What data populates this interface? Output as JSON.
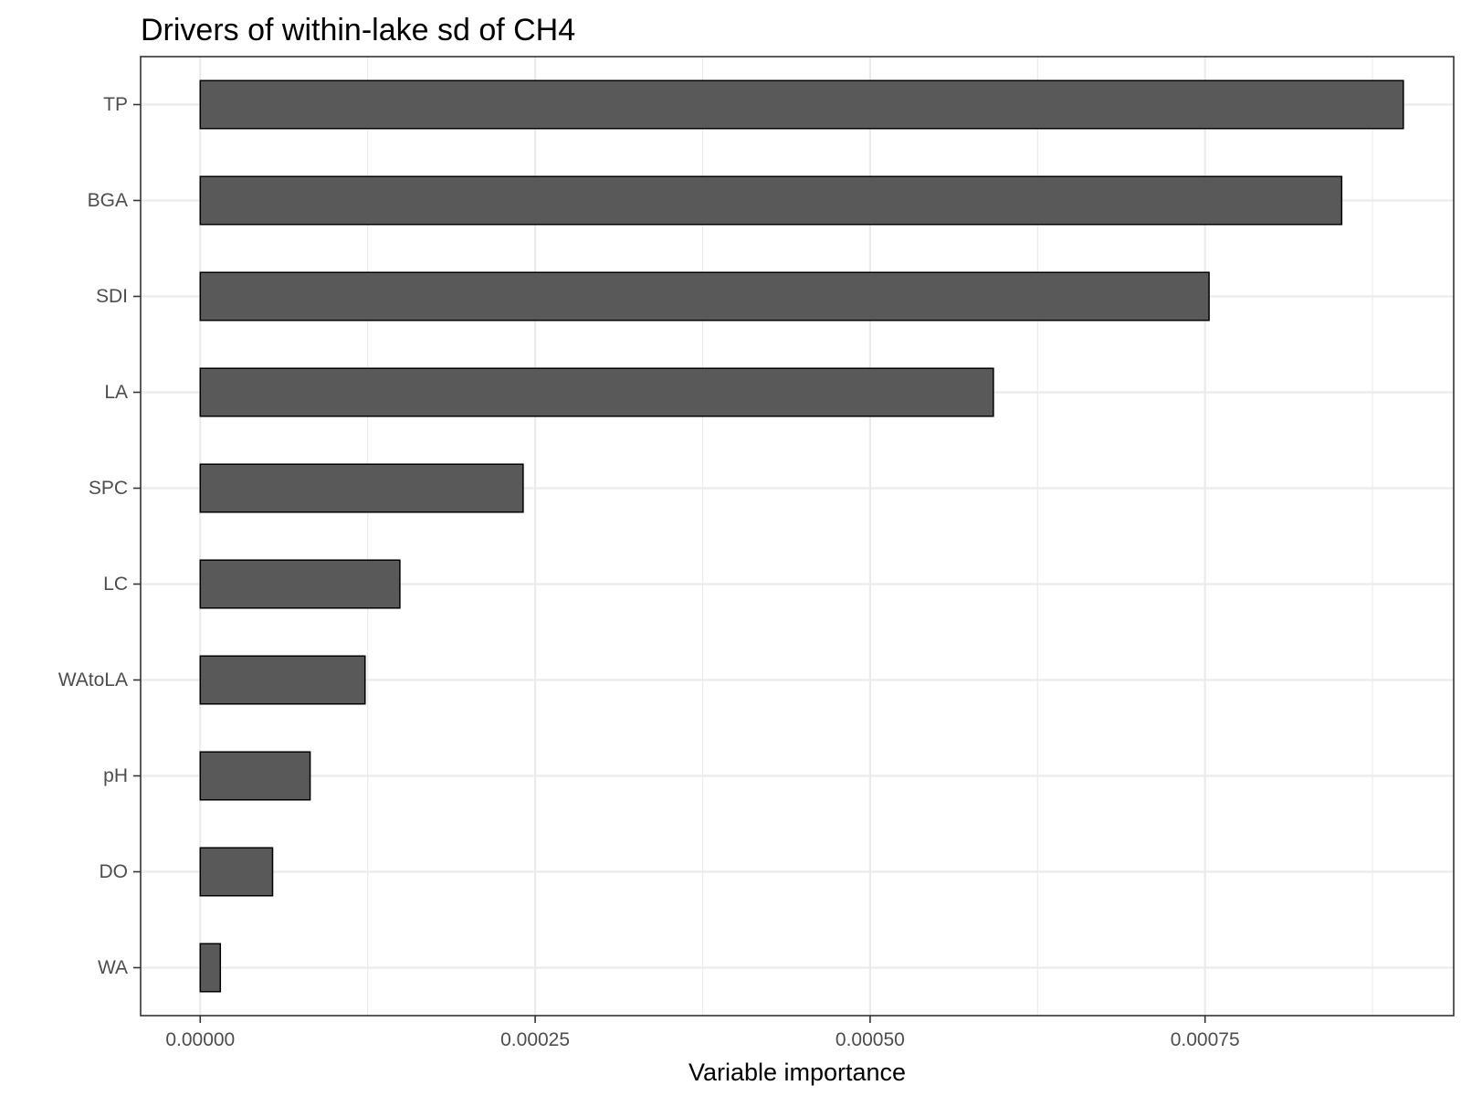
{
  "chart_data": {
    "type": "bar",
    "orientation": "horizontal",
    "title": "Drivers of within-lake sd of CH4",
    "xlabel": "Variable importance",
    "ylabel": "",
    "categories": [
      "TP",
      "BGA",
      "SDI",
      "LA",
      "SPC",
      "LC",
      "WAtoLA",
      "pH",
      "DO",
      "WA"
    ],
    "values": [
      0.000898,
      0.000852,
      0.000753,
      0.000592,
      0.000241,
      0.000149,
      0.000123,
      8.2e-05,
      5.4e-05,
      1.5e-05
    ],
    "xlim": [
      -4.45e-05,
      0.0009356
    ],
    "xticks": [
      0,
      0.00025,
      0.0005,
      0.00075
    ],
    "xtick_labels": [
      "0.00000",
      "0.00025",
      "0.00050",
      "0.00075"
    ],
    "grid": true,
    "legend": "none",
    "bar_color": "#595959",
    "bar_outline": "#000000",
    "grid_color": "#ebebeb",
    "panel_border_color": "#333333"
  }
}
